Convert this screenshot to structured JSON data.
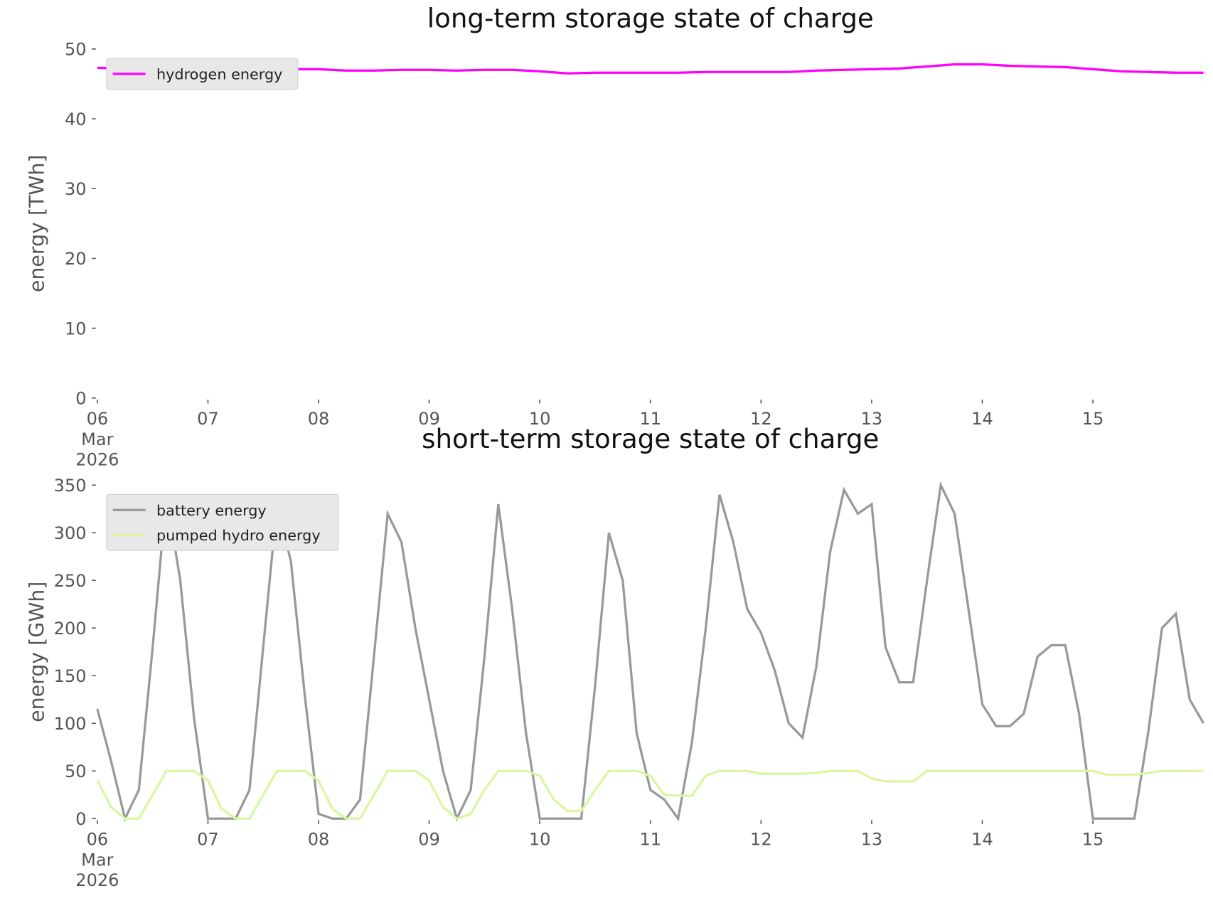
{
  "chart_data": [
    {
      "type": "line",
      "title": "long-term storage state of charge",
      "y_label": "energy [TWh]",
      "x": [
        6,
        6.25,
        6.5,
        6.75,
        7,
        7.25,
        7.5,
        7.75,
        8,
        8.25,
        8.5,
        8.75,
        9,
        9.25,
        9.5,
        9.75,
        10,
        10.25,
        10.5,
        10.75,
        11,
        11.25,
        11.5,
        11.75,
        12,
        12.25,
        12.5,
        12.75,
        13,
        13.25,
        13.5,
        13.75,
        14,
        14.25,
        14.5,
        14.75,
        15,
        15.25,
        15.5,
        15.75,
        16
      ],
      "series": [
        {
          "name": "hydrogen energy",
          "color": "#ff00ff",
          "values": [
            47.3,
            47.2,
            47.1,
            47.1,
            47.1,
            47.1,
            47.1,
            47.1,
            47.1,
            46.9,
            46.9,
            47.0,
            47.0,
            46.9,
            47.0,
            47.0,
            46.8,
            46.5,
            46.6,
            46.6,
            46.6,
            46.6,
            46.7,
            46.7,
            46.7,
            46.7,
            46.9,
            47.0,
            47.1,
            47.2,
            47.5,
            47.8,
            47.8,
            47.6,
            47.5,
            47.4,
            47.1,
            46.8,
            46.7,
            46.6,
            46.6
          ]
        }
      ],
      "xlim": [
        6,
        16
      ],
      "ylim": [
        0,
        50
      ],
      "xticks": [
        {
          "value": 6,
          "label": "06\nMar\n2026"
        },
        {
          "value": 7,
          "label": "07"
        },
        {
          "value": 8,
          "label": "08"
        },
        {
          "value": 9,
          "label": "09"
        },
        10,
        11,
        12,
        13,
        14,
        15
      ],
      "yticks": [
        0,
        10,
        20,
        30,
        40,
        50
      ],
      "legend": "upper left"
    },
    {
      "type": "line",
      "title": "short-term storage state of charge",
      "y_label": "energy [GWh]",
      "x": [
        6,
        6.125,
        6.25,
        6.375,
        6.5,
        6.625,
        6.75,
        6.875,
        7,
        7.125,
        7.25,
        7.375,
        7.5,
        7.625,
        7.75,
        7.875,
        8,
        8.125,
        8.25,
        8.375,
        8.5,
        8.625,
        8.75,
        8.875,
        9,
        9.125,
        9.25,
        9.375,
        9.5,
        9.625,
        9.75,
        9.875,
        10,
        10.125,
        10.25,
        10.375,
        10.5,
        10.625,
        10.75,
        10.875,
        11,
        11.125,
        11.25,
        11.375,
        11.5,
        11.625,
        11.75,
        11.875,
        12,
        12.125,
        12.25,
        12.375,
        12.5,
        12.625,
        12.75,
        12.875,
        13,
        13.125,
        13.25,
        13.375,
        13.5,
        13.625,
        13.75,
        13.875,
        14,
        14.125,
        14.25,
        14.375,
        14.5,
        14.625,
        14.75,
        14.875,
        15,
        15.125,
        15.25,
        15.375,
        15.5,
        15.625,
        15.75,
        15.875,
        16
      ],
      "series": [
        {
          "name": "battery energy",
          "color": "#999999",
          "values": [
            115,
            60,
            0,
            30,
            180,
            340,
            250,
            105,
            0,
            0,
            0,
            30,
            180,
            330,
            270,
            130,
            5,
            0,
            0,
            20,
            170,
            320,
            290,
            200,
            125,
            50,
            0,
            30,
            170,
            330,
            220,
            90,
            0,
            0,
            0,
            0,
            140,
            300,
            250,
            90,
            30,
            20,
            0,
            80,
            200,
            340,
            290,
            220,
            195,
            155,
            100,
            85,
            160,
            280,
            345,
            320,
            330,
            180,
            143,
            143,
            250,
            350,
            320,
            220,
            120,
            97,
            97,
            110,
            170,
            182,
            182,
            110,
            0,
            0,
            0,
            0,
            90,
            200,
            215,
            125,
            100
          ]
        },
        {
          "name": "pumped hydro energy",
          "color": "#d9f7a0",
          "values": [
            40,
            12,
            0,
            0,
            25,
            50,
            50,
            50,
            40,
            10,
            0,
            0,
            25,
            50,
            50,
            50,
            40,
            10,
            0,
            0,
            25,
            50,
            50,
            50,
            40,
            12,
            0,
            5,
            30,
            50,
            50,
            50,
            45,
            20,
            8,
            8,
            30,
            50,
            50,
            50,
            45,
            25,
            24,
            24,
            45,
            50,
            50,
            50,
            47,
            47,
            47,
            47,
            48,
            50,
            50,
            50,
            42,
            39,
            39,
            39,
            50,
            50,
            50,
            50,
            50,
            50,
            50,
            50,
            50,
            50,
            50,
            50,
            50,
            46,
            46,
            46,
            48,
            50,
            50,
            50,
            50
          ]
        }
      ],
      "xlim": [
        6,
        16
      ],
      "ylim": [
        0,
        350
      ],
      "xticks": [
        {
          "value": 6,
          "label": "06\nMar\n2026"
        },
        {
          "value": 7,
          "label": "07"
        },
        {
          "value": 8,
          "label": "08"
        },
        {
          "value": 9,
          "label": "09"
        },
        10,
        11,
        12,
        13,
        14,
        15
      ],
      "yticks": [
        0,
        50,
        100,
        150,
        200,
        250,
        300,
        350
      ],
      "legend": "upper left"
    }
  ]
}
